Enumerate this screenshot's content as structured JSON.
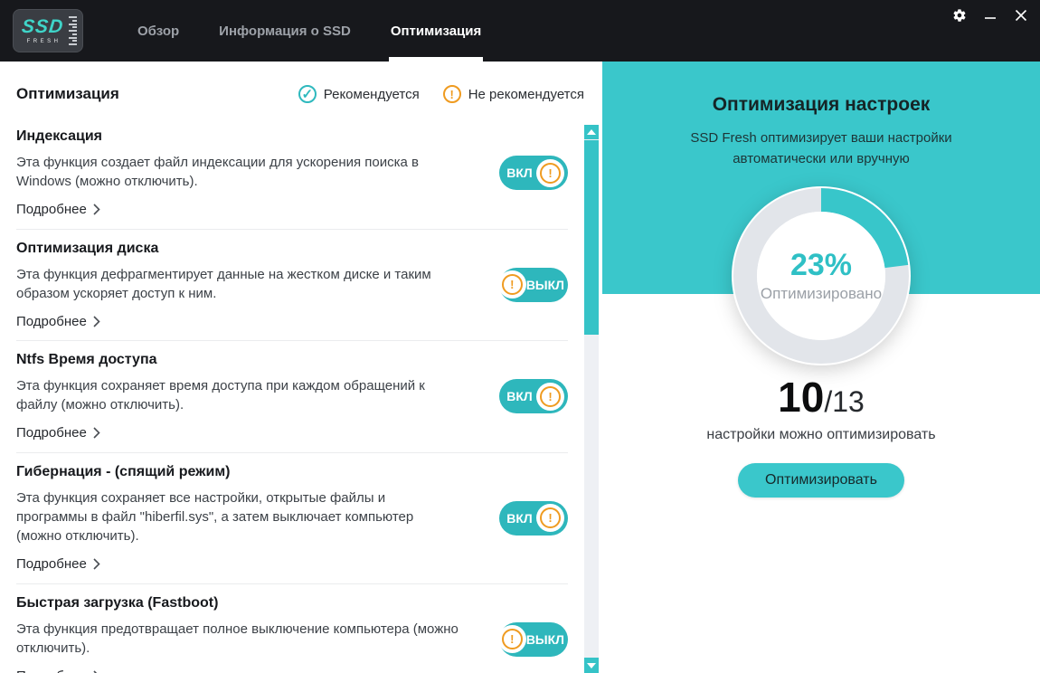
{
  "header": {
    "logo": {
      "line1": "SSD",
      "line2": "FRESH"
    },
    "tabs": [
      {
        "label": "Обзор",
        "active": false
      },
      {
        "label": "Информация о SSD",
        "active": false
      },
      {
        "label": "Оптимизация",
        "active": true
      }
    ],
    "controls": {
      "settings": "gear-icon",
      "minimize": "minimize-icon",
      "close": "close-icon"
    }
  },
  "colors": {
    "header_bg": "#17181c",
    "teal_panel": "#3ac7cb",
    "teal_toggle": "#2eb7bc",
    "orange_warning": "#ef9b20"
  },
  "left": {
    "title": "Оптимизация",
    "legend": [
      {
        "label": "Рекомендуется",
        "icon": "check-circle-icon",
        "glyph": "✓"
      },
      {
        "label": "Не рекомендуется",
        "icon": "warning-circle-icon",
        "glyph": "!"
      }
    ],
    "details_label": "Подробнее",
    "warning_glyph": "!",
    "items": [
      {
        "title": "Индексация",
        "description": "Эта функция создает файл индексации для ускорения поиска в Windows (можно отключить).",
        "state_label": "ВКЛ",
        "state": "on",
        "indicator": "warning"
      },
      {
        "title": "Оптимизация диска",
        "description": "Эта функция дефрагментирует данные на жестком диске и таким образом ускоряет доступ к ним.",
        "state_label": "ВЫКЛ",
        "state": "off",
        "indicator": "warning"
      },
      {
        "title": "Ntfs Время доступа",
        "description": "Эта функция сохраняет время доступа при каждом обращений к файлу (можно отключить).",
        "state_label": "ВКЛ",
        "state": "on",
        "indicator": "warning"
      },
      {
        "title": "Гибернация - (спящий режим)",
        "description": "Эта функция сохраняет все настройки, открытые файлы и программы в файл \"hiberfil.sys\", а затем выключает компьютер (можно отключить).",
        "state_label": "ВКЛ",
        "state": "on",
        "indicator": "warning"
      },
      {
        "title": "Быстрая загрузка (Fastboot)",
        "description": "Эта функция предотвращает полное выключение компьютера (можно отключить).",
        "state_label": "ВЫКЛ",
        "state": "off",
        "indicator": "warning"
      }
    ]
  },
  "right": {
    "title": "Оптимизация настроек",
    "subtitle": "SSD Fresh оптимизирует ваши настройки автоматически или вручную",
    "donut": {
      "percent": 23,
      "percent_label": "23%",
      "center_caption": "Оптимизировано"
    },
    "fraction": {
      "current": "10",
      "separator": "/",
      "total": "13"
    },
    "caption": "настройки можно оптимизировать",
    "button_label": "Оптимизировать"
  }
}
